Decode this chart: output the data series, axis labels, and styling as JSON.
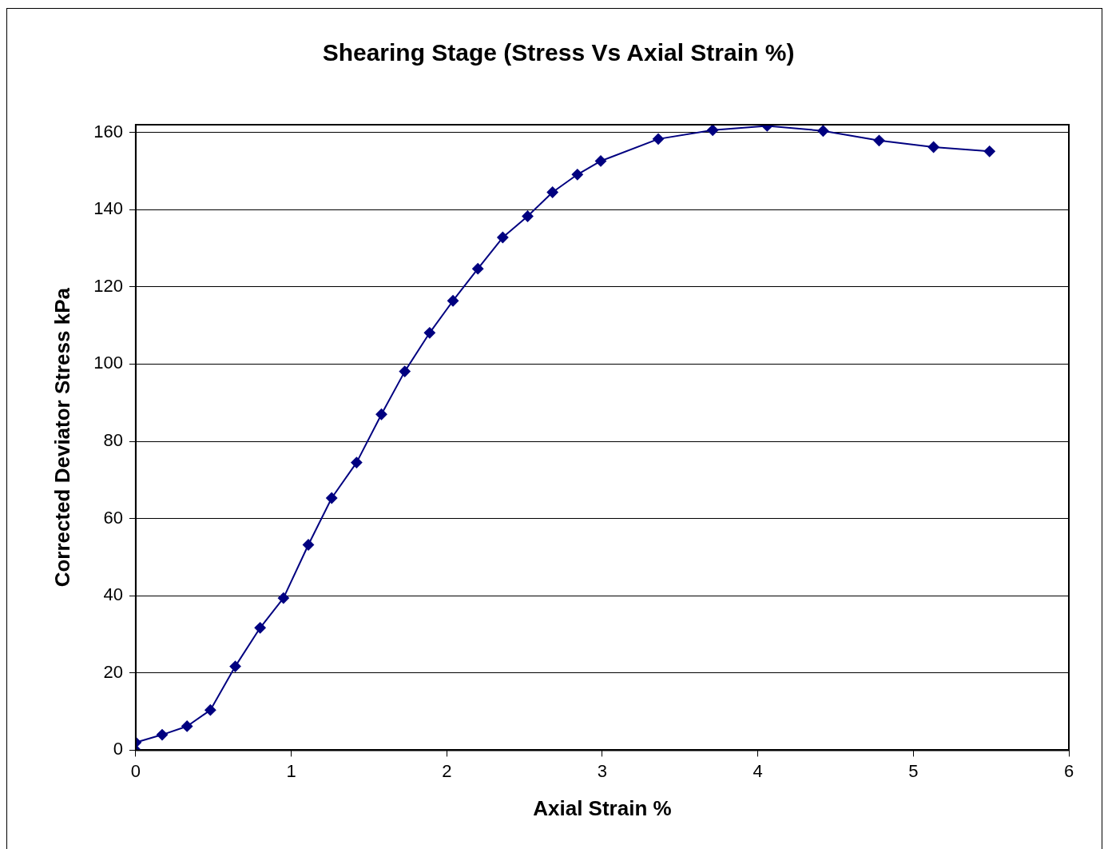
{
  "chart_data": {
    "type": "line",
    "title": "Shearing Stage (Stress Vs Axial Strain %)",
    "xlabel": "Axial Strain %",
    "ylabel": "Corrected Deviator Stress kPa",
    "x": [
      0,
      0,
      0.17,
      0.33,
      0.48,
      0.64,
      0.8,
      0.95,
      1.11,
      1.26,
      1.42,
      1.58,
      1.73,
      1.89,
      2.04,
      2.2,
      2.36,
      2.52,
      2.68,
      2.84,
      2.99,
      3.36,
      3.71,
      4.06,
      4.42,
      4.78,
      5.13,
      5.49
    ],
    "series": [
      {
        "color": "#000080",
        "values": [
          0,
          2,
          4,
          6.2,
          10.4,
          21.7,
          31.7,
          39.4,
          53.2,
          65.3,
          74.5,
          87,
          98.1,
          108.1,
          116.4,
          124.7,
          132.8,
          138.3,
          144.5,
          149.1,
          152.6,
          158.3,
          160.6,
          161.7,
          160.4,
          157.9,
          156.2,
          155.1
        ]
      }
    ],
    "xlim": [
      0,
      6
    ],
    "xticks": [
      0,
      1,
      2,
      3,
      4,
      5,
      6
    ],
    "ylim": [
      0,
      162
    ],
    "yticks": [
      0,
      20,
      40,
      60,
      80,
      100,
      120,
      140,
      160
    ],
    "grid": "y",
    "legend": false,
    "marker": "diamond",
    "line_style": "solid"
  }
}
